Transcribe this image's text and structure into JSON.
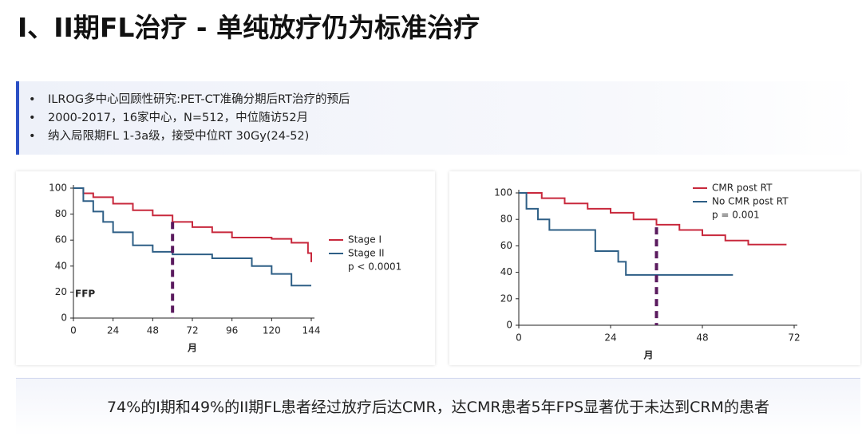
{
  "header": {
    "title": "I、II期FL治疗 - 单纯放疗仍为标准治疗"
  },
  "bullets": [
    "ILROG多中心回顾性研究:PET-CT准确分期后RT治疗的预后",
    "2000-2017，16家中心，N=512，中位随访52月",
    "纳入局限期FL 1-3a级，接受中位RT 30Gy(24-52)"
  ],
  "chart_data": [
    {
      "type": "step-line",
      "x_label": "月",
      "annotation": "FFP",
      "p_value": "p < 0.0001",
      "reference_x": 60,
      "xlim": [
        0,
        144
      ],
      "xticks": [
        0,
        24,
        48,
        72,
        96,
        120,
        144
      ],
      "ylim": [
        0,
        100
      ],
      "yticks": [
        0,
        20,
        40,
        60,
        80,
        100
      ],
      "grid": false,
      "legend": "right",
      "series": [
        {
          "name": "Stage I",
          "color": "#c8283c",
          "x": [
            0,
            6,
            12,
            24,
            36,
            48,
            60,
            72,
            84,
            96,
            108,
            120,
            132,
            138,
            142,
            144
          ],
          "values": [
            100,
            96,
            93,
            88,
            83,
            79,
            74,
            70,
            66,
            62,
            62,
            61,
            58,
            58,
            50,
            43
          ]
        },
        {
          "name": "Stage II",
          "color": "#2e5f86",
          "x": [
            0,
            6,
            12,
            18,
            24,
            36,
            48,
            60,
            72,
            84,
            96,
            108,
            120,
            132,
            144
          ],
          "values": [
            100,
            90,
            82,
            74,
            66,
            56,
            51,
            49,
            49,
            46,
            46,
            40,
            34,
            25,
            25
          ]
        }
      ]
    },
    {
      "type": "step-line",
      "x_label": "月",
      "p_value": "p = 0.001",
      "reference_x": 36,
      "xlim": [
        0,
        72
      ],
      "xticks": [
        0,
        24,
        48,
        72
      ],
      "ylim": [
        0,
        100
      ],
      "yticks": [
        0,
        20,
        40,
        60,
        80,
        100
      ],
      "grid": false,
      "legend": "top",
      "series": [
        {
          "name": "CMR post RT",
          "color": "#c8283c",
          "x": [
            0,
            6,
            12,
            18,
            24,
            30,
            36,
            42,
            48,
            54,
            60,
            70
          ],
          "values": [
            100,
            96,
            92,
            88,
            85,
            80,
            76,
            72,
            68,
            64,
            61,
            61
          ]
        },
        {
          "name": "No CMR post RT",
          "color": "#2e5f86",
          "x": [
            0,
            2,
            5,
            8,
            16,
            20,
            24,
            26,
            28,
            30,
            56
          ],
          "values": [
            100,
            88,
            80,
            72,
            72,
            56,
            56,
            48,
            38,
            38,
            38
          ]
        }
      ]
    }
  ],
  "conclusion": "74%的I期和49%的II期FL患者经过放疗后达CMR，达CMR患者5年FPS显著优于未达到CRM的患者"
}
